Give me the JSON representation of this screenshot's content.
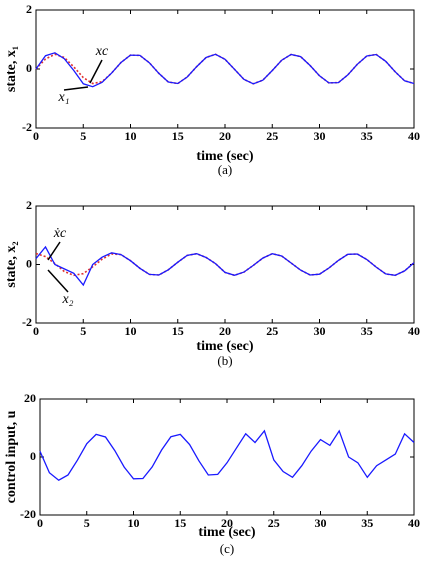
{
  "chart_data": [
    {
      "type": "line",
      "xlabel": "time (sec)",
      "ylabel": "state, x₁",
      "caption": "(a)",
      "x": [
        0,
        1,
        2,
        3,
        4,
        5,
        6,
        7,
        8,
        9,
        10,
        11,
        12,
        13,
        14,
        15,
        16,
        17,
        18,
        19,
        20,
        21,
        22,
        23,
        24,
        25,
        26,
        27,
        28,
        29,
        30,
        31,
        32,
        33,
        34,
        35,
        36,
        37,
        38,
        39,
        40
      ],
      "series": [
        {
          "color": "#e03030",
          "style": "dotted",
          "values": [
            0,
            0.34,
            0.5,
            0.39,
            0.07,
            -0.29,
            -0.49,
            -0.43,
            -0.14,
            0.22,
            0.47,
            0.46,
            0.21,
            -0.15,
            -0.44,
            -0.49,
            -0.27,
            0.08,
            0.39,
            0.5,
            0.33,
            -0.01,
            -0.35,
            -0.5,
            -0.38,
            -0.05,
            0.3,
            0.49,
            0.42,
            0.12,
            -0.23,
            -0.47,
            -0.46,
            -0.2,
            0.16,
            0.44,
            0.49,
            0.26,
            -0.09,
            -0.4,
            -0.49
          ]
        },
        {
          "color": "#1a1aff",
          "style": "solid",
          "values": [
            0,
            0.45,
            0.55,
            0.35,
            -0.05,
            -0.5,
            -0.6,
            -0.45,
            -0.14,
            0.22,
            0.47,
            0.46,
            0.21,
            -0.15,
            -0.44,
            -0.49,
            -0.27,
            0.08,
            0.39,
            0.5,
            0.33,
            -0.01,
            -0.35,
            -0.5,
            -0.38,
            -0.05,
            0.3,
            0.49,
            0.42,
            0.12,
            -0.23,
            -0.47,
            -0.46,
            -0.2,
            0.16,
            0.44,
            0.49,
            0.26,
            -0.09,
            -0.4,
            -0.49
          ]
        }
      ],
      "annotations": [
        "xc",
        "x₁"
      ],
      "xlim": [
        0,
        40
      ],
      "xticks": [
        0,
        5,
        10,
        15,
        20,
        25,
        30,
        35,
        40
      ],
      "ylim": [
        -2,
        2
      ],
      "yticks": [
        -2,
        0,
        2
      ]
    },
    {
      "type": "line",
      "xlabel": "time (sec)",
      "ylabel": "state, x₂",
      "caption": "(b)",
      "x": [
        0,
        1,
        2,
        3,
        4,
        5,
        6,
        7,
        8,
        9,
        10,
        11,
        12,
        13,
        14,
        15,
        16,
        17,
        18,
        19,
        20,
        21,
        22,
        23,
        24,
        25,
        26,
        27,
        28,
        29,
        30,
        31,
        32,
        33,
        34,
        35,
        36,
        37,
        38,
        39,
        40
      ],
      "series": [
        {
          "color": "#e03030",
          "style": "dotted",
          "values": [
            0.375,
            0.27,
            0.03,
            -0.24,
            -0.37,
            -0.31,
            -0.08,
            0.18,
            0.36,
            0.34,
            0.13,
            -0.13,
            -0.34,
            -0.36,
            -0.18,
            0.08,
            0.31,
            0.37,
            0.24,
            0.03,
            -0.27,
            -0.37,
            -0.26,
            -0.03,
            0.22,
            0.37,
            0.29,
            0.05,
            -0.19,
            -0.36,
            -0.33,
            -0.12,
            0.14,
            0.35,
            0.36,
            0.17,
            -0.09,
            -0.32,
            -0.37,
            -0.22,
            0.06
          ]
        },
        {
          "color": "#1a1aff",
          "style": "solid",
          "values": [
            0.2,
            0.6,
            0,
            -0.15,
            -0.3,
            -0.7,
            0,
            0.25,
            0.4,
            0.34,
            0.13,
            -0.13,
            -0.34,
            -0.36,
            -0.18,
            0.08,
            0.31,
            0.37,
            0.24,
            0.03,
            -0.27,
            -0.37,
            -0.26,
            -0.03,
            0.22,
            0.37,
            0.29,
            0.05,
            -0.19,
            -0.36,
            -0.33,
            -0.12,
            0.14,
            0.35,
            0.36,
            0.17,
            -0.09,
            -0.32,
            -0.37,
            -0.22,
            0.06
          ]
        }
      ],
      "annotations": [
        "ẋc",
        "x₂"
      ],
      "xlim": [
        0,
        40
      ],
      "xticks": [
        0,
        5,
        10,
        15,
        20,
        25,
        30,
        35,
        40
      ],
      "ylim": [
        -2,
        2
      ],
      "yticks": [
        -2,
        0,
        2
      ]
    },
    {
      "type": "line",
      "xlabel": "time (sec)",
      "ylabel": "control input, u",
      "caption": "(c)",
      "x": [
        0,
        1,
        2,
        3,
        4,
        5,
        6,
        7,
        8,
        9,
        10,
        11,
        12,
        13,
        14,
        15,
        16,
        17,
        18,
        19,
        20,
        21,
        22,
        23,
        24,
        25,
        26,
        27,
        28,
        29,
        30,
        31,
        32,
        33,
        34,
        35,
        36,
        37,
        38,
        39,
        40
      ],
      "series": [
        {
          "color": "#1a1aff",
          "style": "solid",
          "values": [
            2,
            -5.4,
            -8,
            -6.2,
            -1.1,
            4.6,
            7.8,
            6.9,
            2.2,
            -3.5,
            -7.5,
            -7.4,
            -3.4,
            2.4,
            7,
            7.8,
            4.3,
            -1.3,
            -6.2,
            -6,
            -2,
            3,
            8,
            5,
            9,
            -1,
            -5,
            -7,
            -3,
            2,
            6,
            4,
            9,
            0,
            -2,
            -7,
            -3,
            -1,
            1,
            8,
            5
          ]
        }
      ],
      "xlim": [
        0,
        40
      ],
      "xticks": [
        0,
        5,
        10,
        15,
        20,
        25,
        30,
        35,
        40
      ],
      "ylim": [
        -20,
        20
      ],
      "yticks": [
        -20,
        0,
        20
      ]
    }
  ]
}
